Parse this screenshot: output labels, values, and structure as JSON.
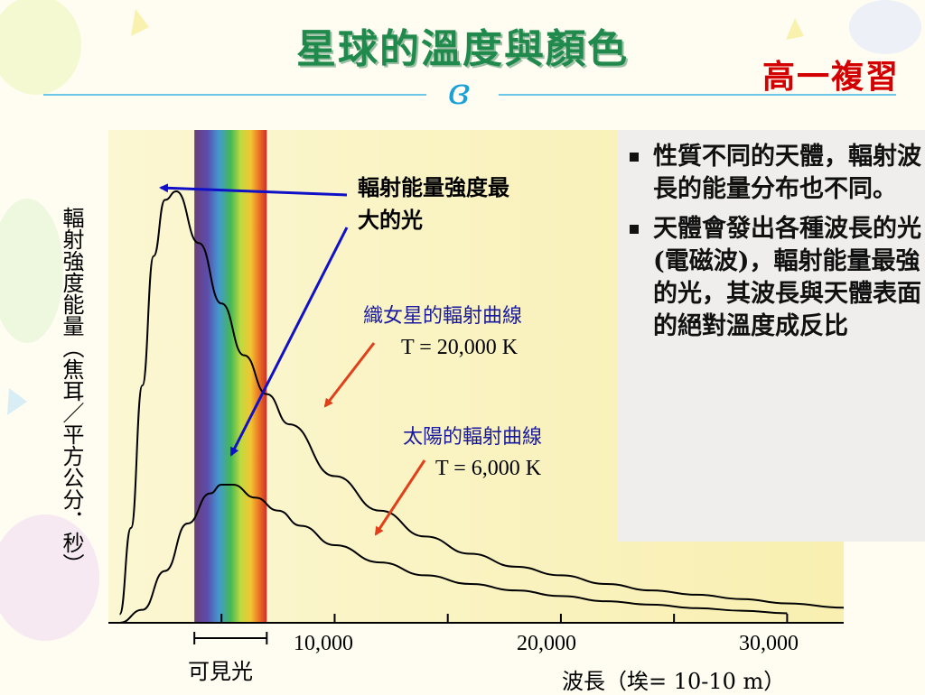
{
  "title": "星球的溫度與顏色",
  "subtitle": "高一複習",
  "emblem": "ɞ",
  "panel": {
    "bullets": [
      "性質不同的天體，輻射波長的能量分布也不同。",
      "天體會發出各種波長的光(電磁波)，輻射能量最強的光，其波長與天體表面的絕對溫度成反比"
    ]
  },
  "annotations": {
    "peak": "輻射能量強度最大的光",
    "vega_name": "織女星的輻射曲線",
    "vega_temp": "T = 20,000 K",
    "sun_name": "太陽的輻射曲線",
    "sun_temp": "T = 6,000 K",
    "visible": "可見光"
  },
  "colors": {
    "title": "#1f8a4c",
    "subtitle": "#d40000",
    "plot_bg": "#fbf6c4",
    "curve": "#000000",
    "blue_arrow": "#1010c8",
    "red_arrow": "#e0401a"
  },
  "chart_data": {
    "type": "line",
    "title": "",
    "xlabel": "波長（埃= 10-10 m）",
    "ylabel": "輻射強度能量（焦耳／平方公分．秒）",
    "x_ticks": [
      "10,000",
      "20,000",
      "30,000"
    ],
    "xlim": [
      0,
      32500
    ],
    "visible_band": [
      3800,
      7000
    ],
    "series": [
      {
        "name": "織女星",
        "x": [
          500,
          1000,
          1500,
          2000,
          2500,
          3000,
          4000,
          5000,
          6000,
          7000,
          8000,
          10000,
          12000,
          14000,
          16000,
          18000,
          20000,
          22000,
          24000,
          26000,
          28000,
          30000,
          32500
        ],
        "y": [
          2,
          22,
          55,
          85,
          98,
          100,
          88,
          74,
          62,
          53,
          46,
          34,
          26,
          20,
          16,
          13,
          11,
          9,
          7.5,
          6.5,
          5.5,
          4.5,
          3.5
        ]
      },
      {
        "name": "太陽",
        "x": [
          500,
          1500,
          2500,
          3500,
          4500,
          5000,
          5500,
          6500,
          7500,
          8500,
          10000,
          12000,
          14000,
          16000,
          18000,
          20000,
          22000,
          24000,
          26000,
          28000,
          30000
        ],
        "y": [
          0,
          3,
          12,
          23,
          30,
          32,
          32,
          29,
          26,
          22.5,
          18,
          14,
          11,
          9,
          7.5,
          6.2,
          5,
          4.2,
          3.4,
          2.8,
          2.2
        ]
      }
    ]
  }
}
